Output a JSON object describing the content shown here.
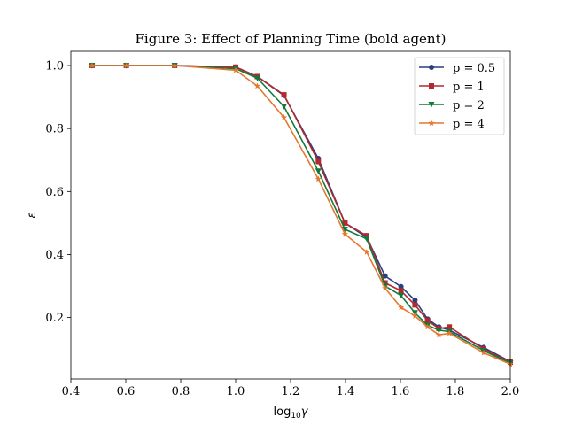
{
  "chart_data": {
    "type": "line",
    "title": "Figure 3: Effect of Planning Time (bold agent)",
    "xlabel_base": "log",
    "xlabel_sub": "10",
    "xlabel_var": "γ",
    "ylabel": "ε",
    "xlim": [
      0.4,
      2.0
    ],
    "ylim": [
      0.005,
      1.045
    ],
    "xticks": [
      "0.4",
      "0.6",
      "0.8",
      "1.0",
      "1.2",
      "1.4",
      "1.6",
      "1.8",
      "2.0"
    ],
    "yticks": [
      "0.2",
      "0.4",
      "0.6",
      "0.8",
      "1.0"
    ],
    "legend_position": "top-right",
    "grid": false,
    "x": [
      0.477,
      0.602,
      0.778,
      1.0,
      1.079,
      1.176,
      1.301,
      1.398,
      1.477,
      1.544,
      1.602,
      1.653,
      1.699,
      1.74,
      1.778,
      1.903,
      2.0
    ],
    "series": [
      {
        "name": "p = 0.5",
        "color": "#2b3f7f",
        "marker": "circle",
        "values": [
          1.0,
          1.0,
          1.0,
          0.995,
          0.965,
          0.905,
          0.705,
          0.5,
          0.455,
          0.332,
          0.298,
          0.255,
          0.195,
          0.17,
          0.16,
          0.105,
          0.06
        ]
      },
      {
        "name": "p = 1",
        "color": "#b32930",
        "marker": "square",
        "values": [
          1.0,
          1.0,
          1.0,
          0.995,
          0.965,
          0.907,
          0.695,
          0.5,
          0.46,
          0.31,
          0.285,
          0.24,
          0.19,
          0.165,
          0.17,
          0.1,
          0.058
        ]
      },
      {
        "name": "p = 2",
        "color": "#0f7a3c",
        "marker": "triangle-down",
        "values": [
          1.0,
          1.0,
          1.0,
          0.99,
          0.96,
          0.87,
          0.665,
          0.48,
          0.45,
          0.3,
          0.27,
          0.215,
          0.175,
          0.16,
          0.155,
          0.095,
          0.055
        ]
      },
      {
        "name": "p = 4",
        "color": "#e6772e",
        "marker": "star",
        "values": [
          1.0,
          1.0,
          1.0,
          0.985,
          0.935,
          0.835,
          0.64,
          0.465,
          0.408,
          0.293,
          0.232,
          0.205,
          0.17,
          0.145,
          0.15,
          0.088,
          0.052
        ]
      }
    ]
  }
}
